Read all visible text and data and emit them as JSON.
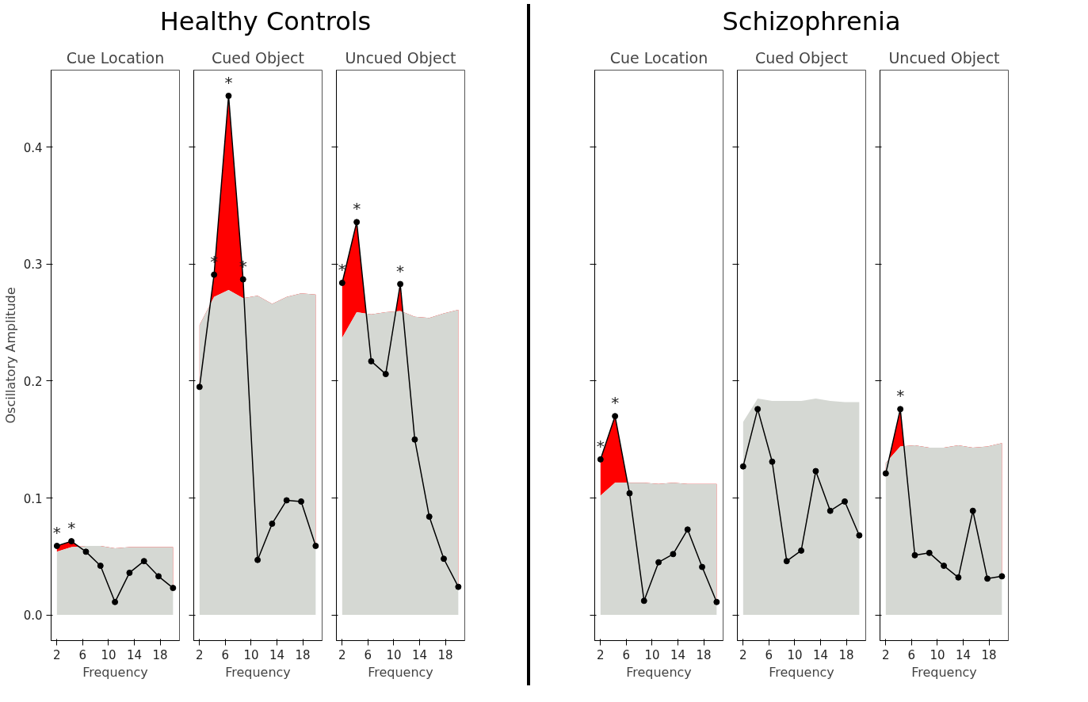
{
  "chart_data": [
    {
      "type": "line",
      "title": "Cue Location",
      "xlabel": "Frequency",
      "ylabel": "Oscillatory Amplitude",
      "xlim": [
        1.1,
        21
      ],
      "ylim": [
        -0.022,
        0.466
      ],
      "xticks": [
        2,
        6,
        10,
        14,
        18
      ],
      "yticks": [
        {
          "value": 0,
          "label": "0.0"
        },
        0.1,
        0.2,
        0.3,
        0.4
      ],
      "grid": false,
      "x": [
        2,
        4.25,
        6.5,
        8.75,
        11,
        13.25,
        15.5,
        17.75,
        20
      ],
      "annotations": [
        "Healthy Controls",
        {
          "text": "*",
          "x": 2,
          "y": 0.059
        },
        {
          "text": "*",
          "x": 4.25,
          "y": 0.063
        }
      ],
      "series": [
        {
          "type": "area",
          "color": "#d5d8d3",
          "values": [
            0.054,
            0.058,
            0.059,
            0.059,
            0.057,
            0.058,
            0.058,
            0.058,
            0.058
          ]
        },
        {
          "color": "#000000",
          "marker": "circle",
          "values": [
            0.059,
            0.063,
            0.054,
            0.042,
            0.011,
            0.036,
            0.046,
            0.033,
            0.023
          ],
          "lower": [
            0.054,
            0.058,
            0.059,
            0.059,
            0.057,
            0.058,
            0.058,
            0.058,
            0.058
          ],
          "upper": [
            0.059,
            0.063,
            0.054,
            0.042,
            0.011,
            0.036,
            0.046,
            0.033,
            0.023
          ]
        }
      ]
    },
    {
      "type": "line",
      "title": "Cued Object",
      "xlabel": "Frequency",
      "xlim": [
        1.1,
        21
      ],
      "ylim": [
        -0.022,
        0.466
      ],
      "xticks": [
        2,
        6,
        10,
        14,
        18
      ],
      "yticks": [
        0,
        0.1,
        0.2,
        0.3,
        0.4
      ],
      "tick_labels": "x",
      "grid": false,
      "x": [
        2,
        4.25,
        6.5,
        8.75,
        11,
        13.25,
        15.5,
        17.75,
        20
      ],
      "annotations": [
        {
          "text": "*",
          "x": 4.25,
          "y": 0.291
        },
        {
          "text": "*",
          "x": 6.5,
          "y": 0.444
        },
        {
          "text": "*",
          "x": 8.75,
          "y": 0.287
        }
      ],
      "series": [
        {
          "type": "area",
          "color": "#d5d8d3",
          "values": [
            0.248,
            0.272,
            0.278,
            0.271,
            0.273,
            0.266,
            0.272,
            0.275,
            0.274
          ]
        },
        {
          "color": "#000000",
          "marker": "circle",
          "values": [
            0.195,
            0.291,
            0.444,
            0.287,
            0.047,
            0.078,
            0.098,
            0.097,
            0.059
          ],
          "lower": [
            0.248,
            0.272,
            0.278,
            0.271,
            0.273,
            0.266,
            0.272,
            0.275,
            0.274
          ],
          "upper": [
            0.195,
            0.291,
            0.444,
            0.287,
            0.047,
            0.078,
            0.098,
            0.097,
            0.059
          ]
        }
      ]
    },
    {
      "type": "line",
      "title": "Uncued Object",
      "xlabel": "Frequency",
      "xlim": [
        1.1,
        21
      ],
      "ylim": [
        -0.022,
        0.466
      ],
      "xticks": [
        2,
        6,
        10,
        14,
        18
      ],
      "yticks": [
        0,
        0.1,
        0.2,
        0.3,
        0.4
      ],
      "tick_labels": "x",
      "grid": false,
      "x": [
        2,
        4.25,
        6.5,
        8.75,
        11,
        13.25,
        15.5,
        17.75,
        20
      ],
      "annotations": [
        {
          "text": "*",
          "x": 2,
          "y": 0.284
        },
        {
          "text": "*",
          "x": 4.25,
          "y": 0.336
        },
        {
          "text": "*",
          "x": 11,
          "y": 0.283
        }
      ],
      "series": [
        {
          "type": "area",
          "color": "#d5d8d3",
          "values": [
            0.237,
            0.259,
            0.257,
            0.259,
            0.26,
            0.255,
            0.254,
            0.258,
            0.261
          ]
        },
        {
          "color": "#000000",
          "marker": "circle",
          "values": [
            0.284,
            0.336,
            0.217,
            0.206,
            0.283,
            0.15,
            0.084,
            0.048,
            0.024
          ],
          "lower": [
            0.237,
            0.259,
            0.257,
            0.259,
            0.26,
            0.255,
            0.254,
            0.258,
            0.261
          ],
          "upper": [
            0.284,
            0.336,
            0.217,
            0.206,
            0.283,
            0.15,
            0.084,
            0.048,
            0.024
          ]
        }
      ]
    },
    {
      "type": "line",
      "title": "Cue Location",
      "xlabel": "Frequency",
      "xlim": [
        1.1,
        21
      ],
      "ylim": [
        -0.022,
        0.466
      ],
      "xticks": [
        2,
        6,
        10,
        14,
        18
      ],
      "yticks": [
        0,
        0.1,
        0.2,
        0.3,
        0.4
      ],
      "tick_labels": "x",
      "grid": false,
      "x": [
        2,
        4.25,
        6.5,
        8.75,
        11,
        13.25,
        15.5,
        17.75,
        20
      ],
      "annotations": [
        "Schizophrenia",
        {
          "text": "*",
          "x": 2,
          "y": 0.133
        },
        {
          "text": "*",
          "x": 4.25,
          "y": 0.17
        }
      ],
      "series": [
        {
          "type": "area",
          "color": "#d5d8d3",
          "values": [
            0.102,
            0.113,
            0.113,
            0.113,
            0.112,
            0.113,
            0.112,
            0.112,
            0.112
          ]
        },
        {
          "color": "#000000",
          "marker": "circle",
          "values": [
            0.133,
            0.17,
            0.104,
            0.012,
            0.045,
            0.052,
            0.073,
            0.041,
            0.011
          ],
          "lower": [
            0.102,
            0.113,
            0.113,
            0.113,
            0.112,
            0.113,
            0.112,
            0.112,
            0.112
          ],
          "upper": [
            0.133,
            0.17,
            0.104,
            0.012,
            0.045,
            0.052,
            0.073,
            0.041,
            0.011
          ]
        }
      ]
    },
    {
      "type": "line",
      "title": "Cued Object",
      "xlabel": "Frequency",
      "xlim": [
        1.1,
        21
      ],
      "ylim": [
        -0.022,
        0.466
      ],
      "xticks": [
        2,
        6,
        10,
        14,
        18
      ],
      "yticks": [
        0,
        0.1,
        0.2,
        0.3,
        0.4
      ],
      "tick_labels": "x",
      "grid": false,
      "x": [
        2,
        4.25,
        6.5,
        8.75,
        11,
        13.25,
        15.5,
        17.75,
        20
      ],
      "series": [
        {
          "type": "area",
          "color": "#d5d8d3",
          "values": [
            0.165,
            0.185,
            0.183,
            0.183,
            0.183,
            0.185,
            0.183,
            0.182,
            0.182
          ]
        },
        {
          "color": "#000000",
          "marker": "circle",
          "values": [
            0.127,
            0.176,
            0.131,
            0.046,
            0.055,
            0.123,
            0.089,
            0.097,
            0.068
          ]
        }
      ]
    },
    {
      "type": "line",
      "title": "Uncued Object",
      "xlabel": "Frequency",
      "xlim": [
        1.1,
        21
      ],
      "ylim": [
        -0.022,
        0.466
      ],
      "xticks": [
        2,
        6,
        10,
        14,
        18
      ],
      "yticks": [
        0,
        0.1,
        0.2,
        0.3,
        0.4
      ],
      "tick_labels": "x",
      "grid": false,
      "x": [
        2,
        4.25,
        6.5,
        8.75,
        11,
        13.25,
        15.5,
        17.75,
        20
      ],
      "annotations": [
        {
          "text": "*",
          "x": 4.25,
          "y": 0.176
        }
      ],
      "series": [
        {
          "type": "area",
          "color": "#d5d8d3",
          "values": [
            0.13,
            0.144,
            0.145,
            0.143,
            0.143,
            0.145,
            0.143,
            0.144,
            0.147
          ]
        },
        {
          "color": "#000000",
          "marker": "circle",
          "values": [
            0.121,
            0.176,
            0.051,
            0.053,
            0.042,
            0.032,
            0.089,
            0.031,
            0.033
          ],
          "lower": [
            0.13,
            0.144,
            0.145,
            0.143,
            0.143,
            0.145,
            0.143,
            0.144,
            0.147
          ],
          "upper": [
            0.121,
            0.176,
            0.051,
            0.053,
            0.042,
            0.032,
            0.089,
            0.031,
            0.033
          ]
        }
      ]
    }
  ]
}
